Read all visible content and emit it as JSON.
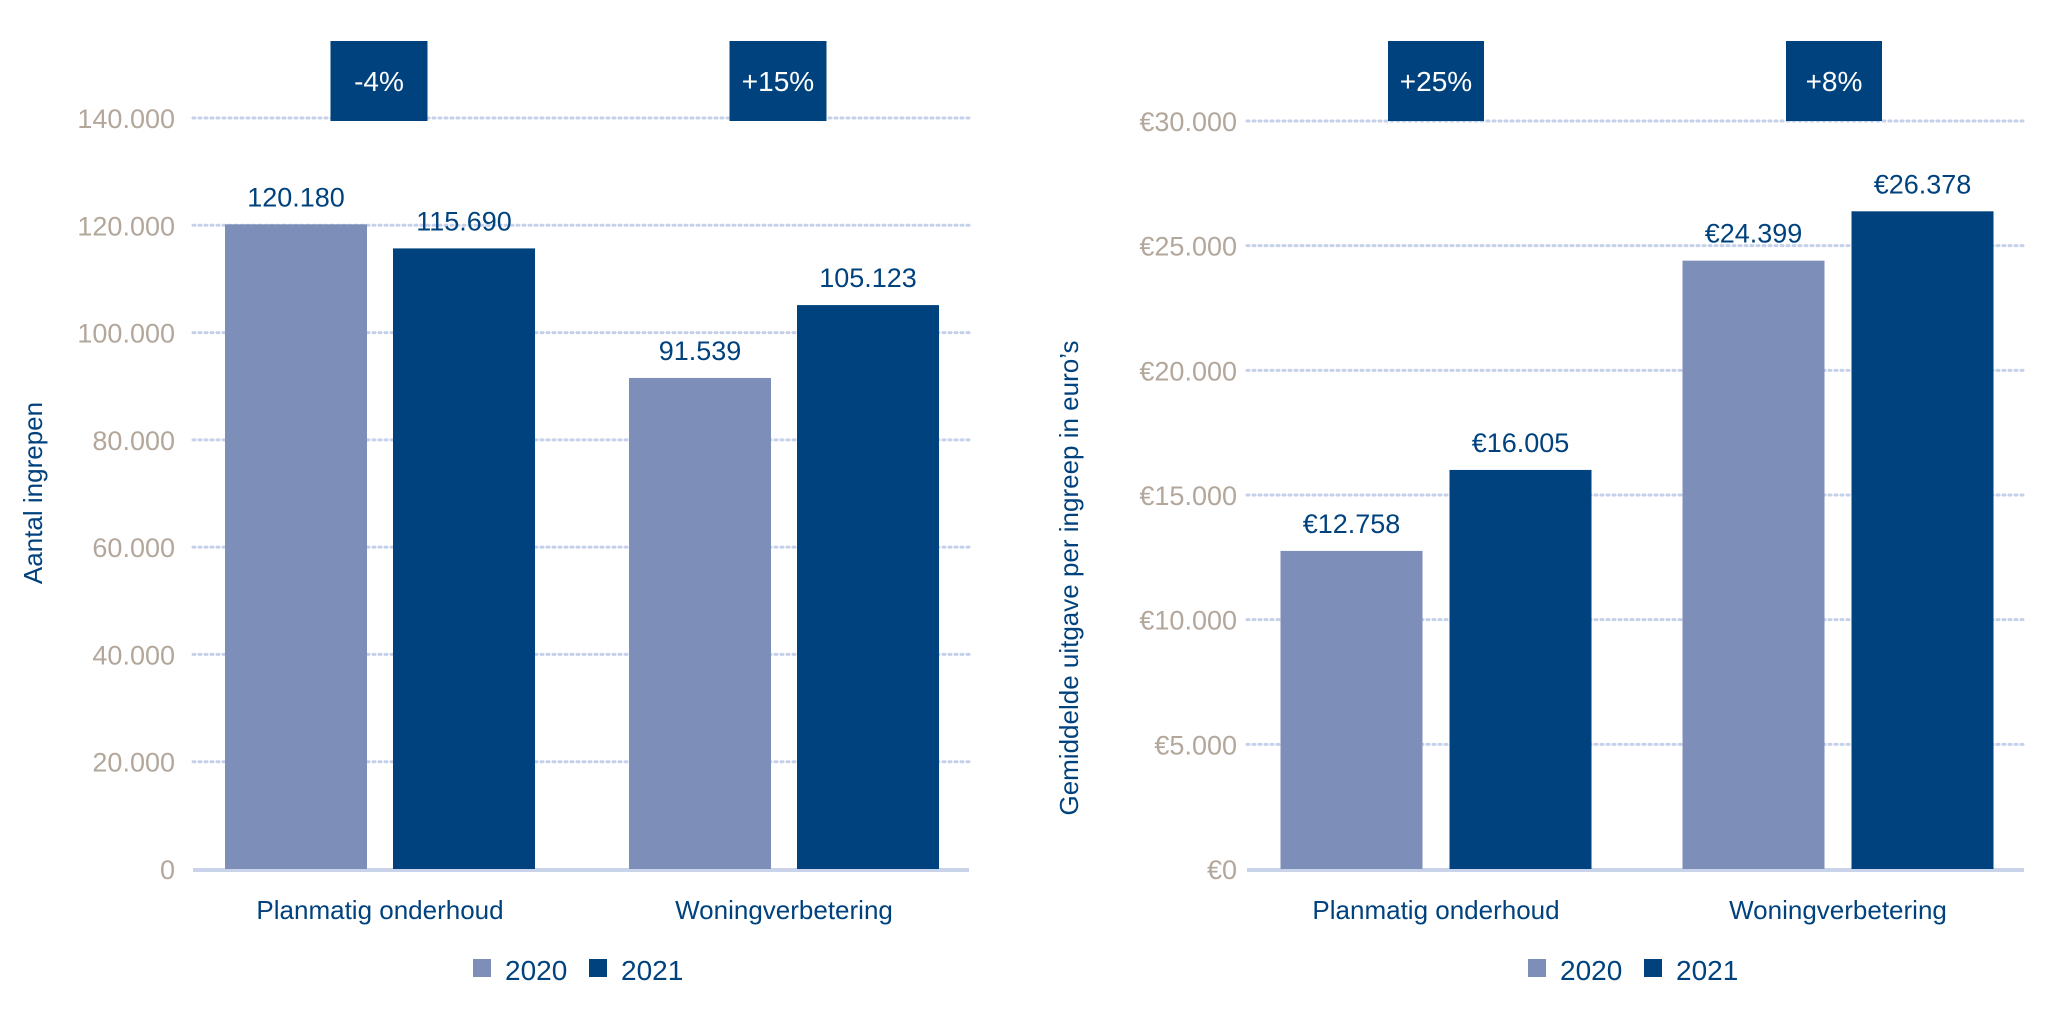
{
  "colors": {
    "series_2020": "#7d8fb8",
    "series_2021": "#00427d",
    "tick": "#b3a79c",
    "grid": "#c5d0ea",
    "baseline": "#c9d3ea",
    "label": "#00427d"
  },
  "chart_data": [
    {
      "type": "bar",
      "title": "",
      "xlabel": "",
      "ylabel": "Aantal ingrepen",
      "ylim": [
        0,
        140000
      ],
      "yticks": [
        0,
        20000,
        40000,
        60000,
        80000,
        100000,
        120000,
        140000
      ],
      "ytick_labels": [
        "0",
        "20.000",
        "40.000",
        "60.000",
        "80.000",
        "100.000",
        "120.000",
        "140.000"
      ],
      "categories": [
        "Planmatig onderhoud",
        "Woningverbetering"
      ],
      "series": [
        {
          "name": "2020",
          "values": [
            120180,
            91539
          ],
          "labels": [
            "120.180",
            "91.539"
          ]
        },
        {
          "name": "2021",
          "values": [
            115690,
            105123
          ],
          "labels": [
            "115.690",
            "105.123"
          ]
        }
      ],
      "change_labels": [
        "-4%",
        "+15%"
      ],
      "grid": true,
      "legend": "bottom-center"
    },
    {
      "type": "bar",
      "title": "",
      "xlabel": "",
      "ylabel": "Gemiddelde uitgave per ingreep in euro’s",
      "ylim": [
        0,
        30000
      ],
      "yticks": [
        0,
        5000,
        10000,
        15000,
        20000,
        25000,
        30000
      ],
      "ytick_labels": [
        "€0",
        "€5.000",
        "€10.000",
        "€15.000",
        "€20.000",
        "€25.000",
        "€30.000"
      ],
      "categories": [
        "Planmatig onderhoud",
        "Woningverbetering"
      ],
      "series": [
        {
          "name": "2020",
          "values": [
            12758,
            24399
          ],
          "labels": [
            "€12.758",
            "€24.399"
          ]
        },
        {
          "name": "2021",
          "values": [
            16005,
            26378
          ],
          "labels": [
            "€16.005",
            "€26.378"
          ]
        }
      ],
      "change_labels": [
        "+25%",
        "+8%"
      ],
      "grid": true,
      "legend": "bottom-center"
    }
  ]
}
